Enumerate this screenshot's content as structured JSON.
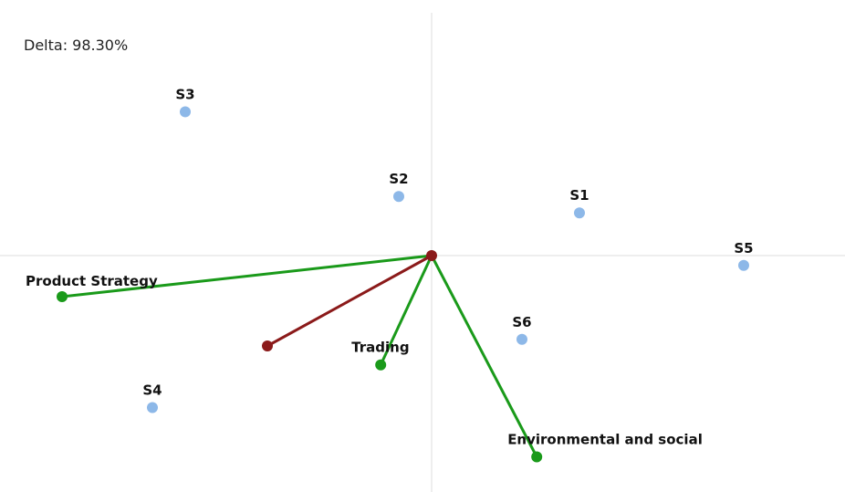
{
  "delta_label": "Delta: 98.30%",
  "chart_data": {
    "type": "scatter",
    "title": "",
    "xlim": [
      -5,
      5
    ],
    "ylim": [
      -3,
      3
    ],
    "grid": false,
    "axes_through_origin": true,
    "origin_marker_color": "#8b1a1a",
    "points": [
      {
        "label": "S3",
        "x": -3.0,
        "y": 1.75,
        "color": "#8db8e8"
      },
      {
        "label": "S2",
        "x": -0.4,
        "y": 0.72,
        "color": "#8db8e8"
      },
      {
        "label": "S1",
        "x": 1.8,
        "y": 0.52,
        "color": "#8db8e8"
      },
      {
        "label": "S5",
        "x": 3.8,
        "y": -0.12,
        "color": "#8db8e8"
      },
      {
        "label": "S6",
        "x": 1.1,
        "y": -1.02,
        "color": "#8db8e8"
      },
      {
        "label": "S4",
        "x": -3.4,
        "y": -1.85,
        "color": "#8db8e8"
      }
    ],
    "vectors": [
      {
        "label": "Product Strategy",
        "x": -4.5,
        "y": -0.5,
        "color": "#1a9a1a",
        "label_pos": "above-right"
      },
      {
        "label": "Trading",
        "x": -0.62,
        "y": -1.33,
        "color": "#1a9a1a",
        "label_pos": "above-left"
      },
      {
        "label": "Environmental and social",
        "x": 1.28,
        "y": -2.45,
        "color": "#1a9a1a",
        "label_pos": "above-left"
      },
      {
        "label": "",
        "x": -2.0,
        "y": -1.1,
        "color": "#8b1a1a",
        "label_pos": "none"
      }
    ]
  }
}
